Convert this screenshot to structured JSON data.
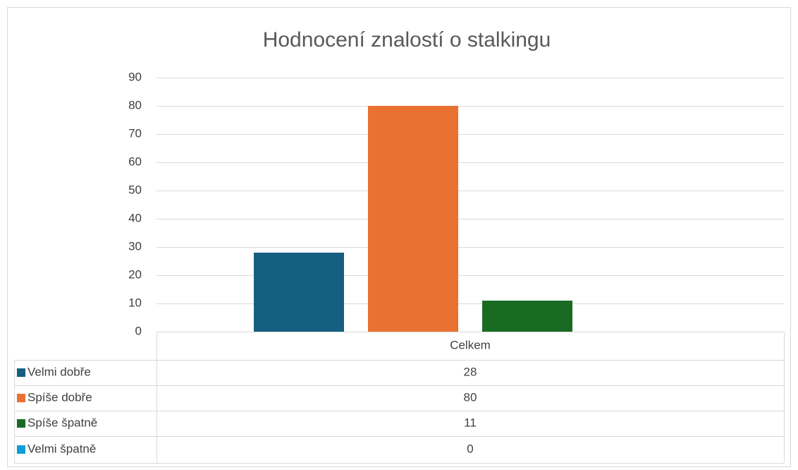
{
  "chart_data": {
    "type": "bar",
    "title": "Hodnocení znalostí o stalkingu",
    "categories": [
      "Celkem"
    ],
    "series": [
      {
        "name": "Velmi dobře",
        "color": "#156082",
        "values": [
          28
        ]
      },
      {
        "name": "Spíše dobře",
        "color": "#e97132",
        "values": [
          80
        ]
      },
      {
        "name": "Spíše špatně",
        "color": "#196b24",
        "values": [
          11
        ]
      },
      {
        "name": "Velmi špatně",
        "color": "#0f9ed5",
        "values": [
          0
        ]
      }
    ],
    "ylim": [
      0,
      90
    ],
    "yticks": [
      0,
      10,
      20,
      30,
      40,
      50,
      60,
      70,
      80,
      90
    ],
    "grid": true
  }
}
